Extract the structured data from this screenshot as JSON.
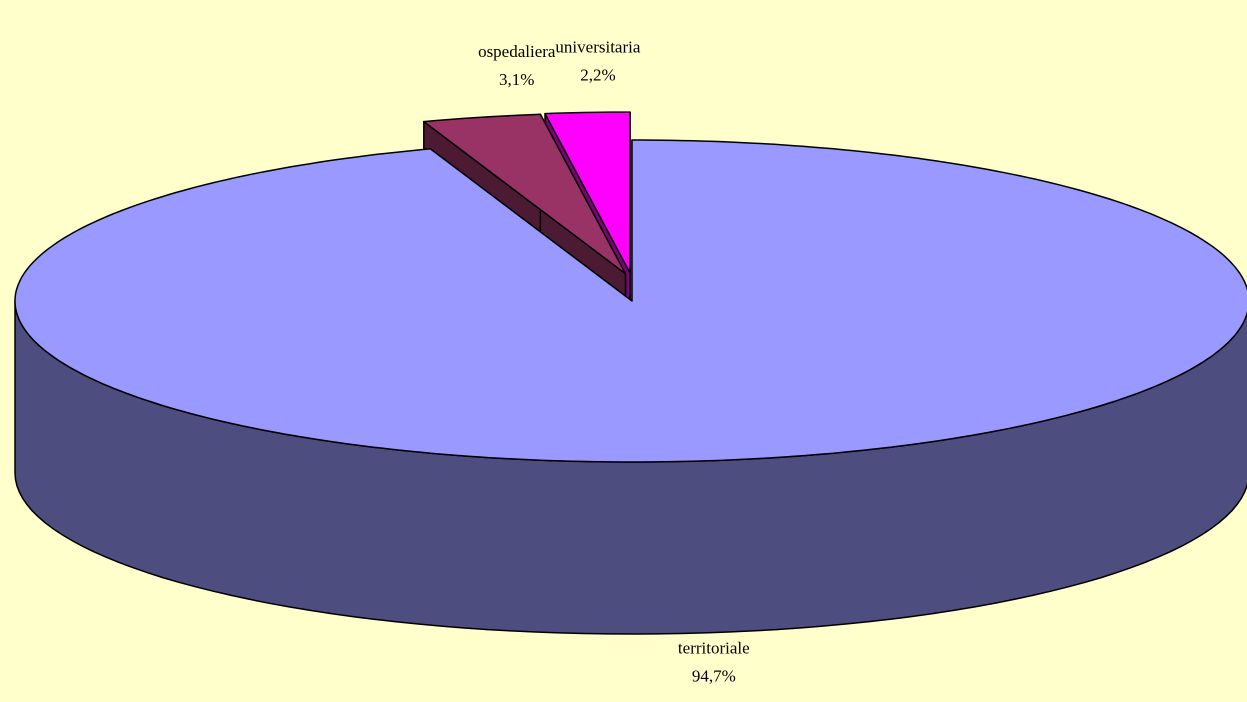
{
  "chart_data": {
    "type": "pie",
    "three_d": true,
    "categories": [
      "territoriale",
      "ospedaliera",
      "universitaria"
    ],
    "values": [
      94.7,
      3.1,
      2.2
    ],
    "value_labels": [
      "94,7%",
      "3,1%",
      "2,2%"
    ],
    "colors": [
      "#9999ff",
      "#993366",
      "#ff00ff"
    ],
    "exploded": [
      false,
      true,
      true
    ]
  }
}
